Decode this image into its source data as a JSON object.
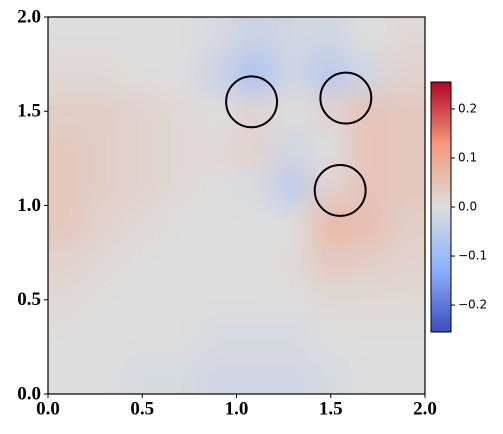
{
  "chart_data": {
    "type": "heatmap",
    "x": [
      0.1,
      0.3,
      0.5,
      0.7,
      0.9,
      1.1,
      1.3,
      1.5,
      1.7,
      1.9
    ],
    "y": [
      1.9,
      1.7,
      1.5,
      1.3,
      1.1,
      0.9,
      0.7,
      0.5,
      0.3,
      0.1
    ],
    "z": [
      [
        0,
        0,
        0,
        0,
        -0.01,
        -0.03,
        -0.02,
        -0.02,
        0,
        0.01
      ],
      [
        0.01,
        0.01,
        0,
        0,
        -0.03,
        -0.08,
        -0.02,
        -0.06,
        -0.02,
        0.02
      ],
      [
        0.03,
        0.03,
        0.02,
        0.01,
        0,
        0.02,
        0,
        0.02,
        0.05,
        0.04
      ],
      [
        0.04,
        0.03,
        0.02,
        0.01,
        0.01,
        0.02,
        -0.02,
        0,
        0.05,
        0.04
      ],
      [
        0.04,
        0.03,
        0.02,
        0.01,
        0,
        -0.01,
        -0.05,
        0.02,
        0.05,
        0.04
      ],
      [
        0.04,
        0.02,
        0.01,
        0,
        0,
        0,
        0,
        0.07,
        0.06,
        0.03
      ],
      [
        0.02,
        0.01,
        0,
        0,
        0,
        0,
        0.01,
        0.04,
        0.03,
        0.02
      ],
      [
        0.01,
        0,
        0,
        0,
        0,
        0,
        0,
        0.01,
        0.01,
        0.01
      ],
      [
        0,
        0,
        0,
        0,
        -0.01,
        -0.01,
        -0.01,
        0,
        0,
        0
      ],
      [
        0,
        0,
        -0.01,
        -0.01,
        -0.02,
        -0.02,
        -0.02,
        -0.01,
        0,
        0
      ]
    ],
    "circles": [
      {
        "x": 1.08,
        "y": 1.55,
        "r": 0.135
      },
      {
        "x": 1.58,
        "y": 1.57,
        "r": 0.135
      },
      {
        "x": 1.55,
        "y": 1.08,
        "r": 0.135
      }
    ],
    "circle_color": "#000000",
    "colormap": [
      "#3b4cc0",
      "#8db0fe",
      "#dddddd",
      "#f49a7b",
      "#b40426"
    ],
    "clim": [
      -0.255,
      0.255
    ],
    "cticks": [
      {
        "value": -0.2,
        "label": "−0.2"
      },
      {
        "value": -0.1,
        "label": "−0.1"
      },
      {
        "value": 0,
        "label": "0.0"
      },
      0.1,
      0.2
    ],
    "xlim": [
      0,
      2
    ],
    "ylim": [
      0,
      2
    ],
    "xticks": [
      {
        "value": 0,
        "label": "0.0"
      },
      0.5,
      {
        "value": 1,
        "label": "1.0"
      },
      1.5,
      {
        "value": 2,
        "label": "2.0"
      }
    ],
    "yticks": [
      {
        "value": 0,
        "label": "0.0"
      },
      0.5,
      {
        "value": 1,
        "label": "1.0"
      },
      1.5,
      {
        "value": 2,
        "label": "2.0"
      }
    ]
  }
}
